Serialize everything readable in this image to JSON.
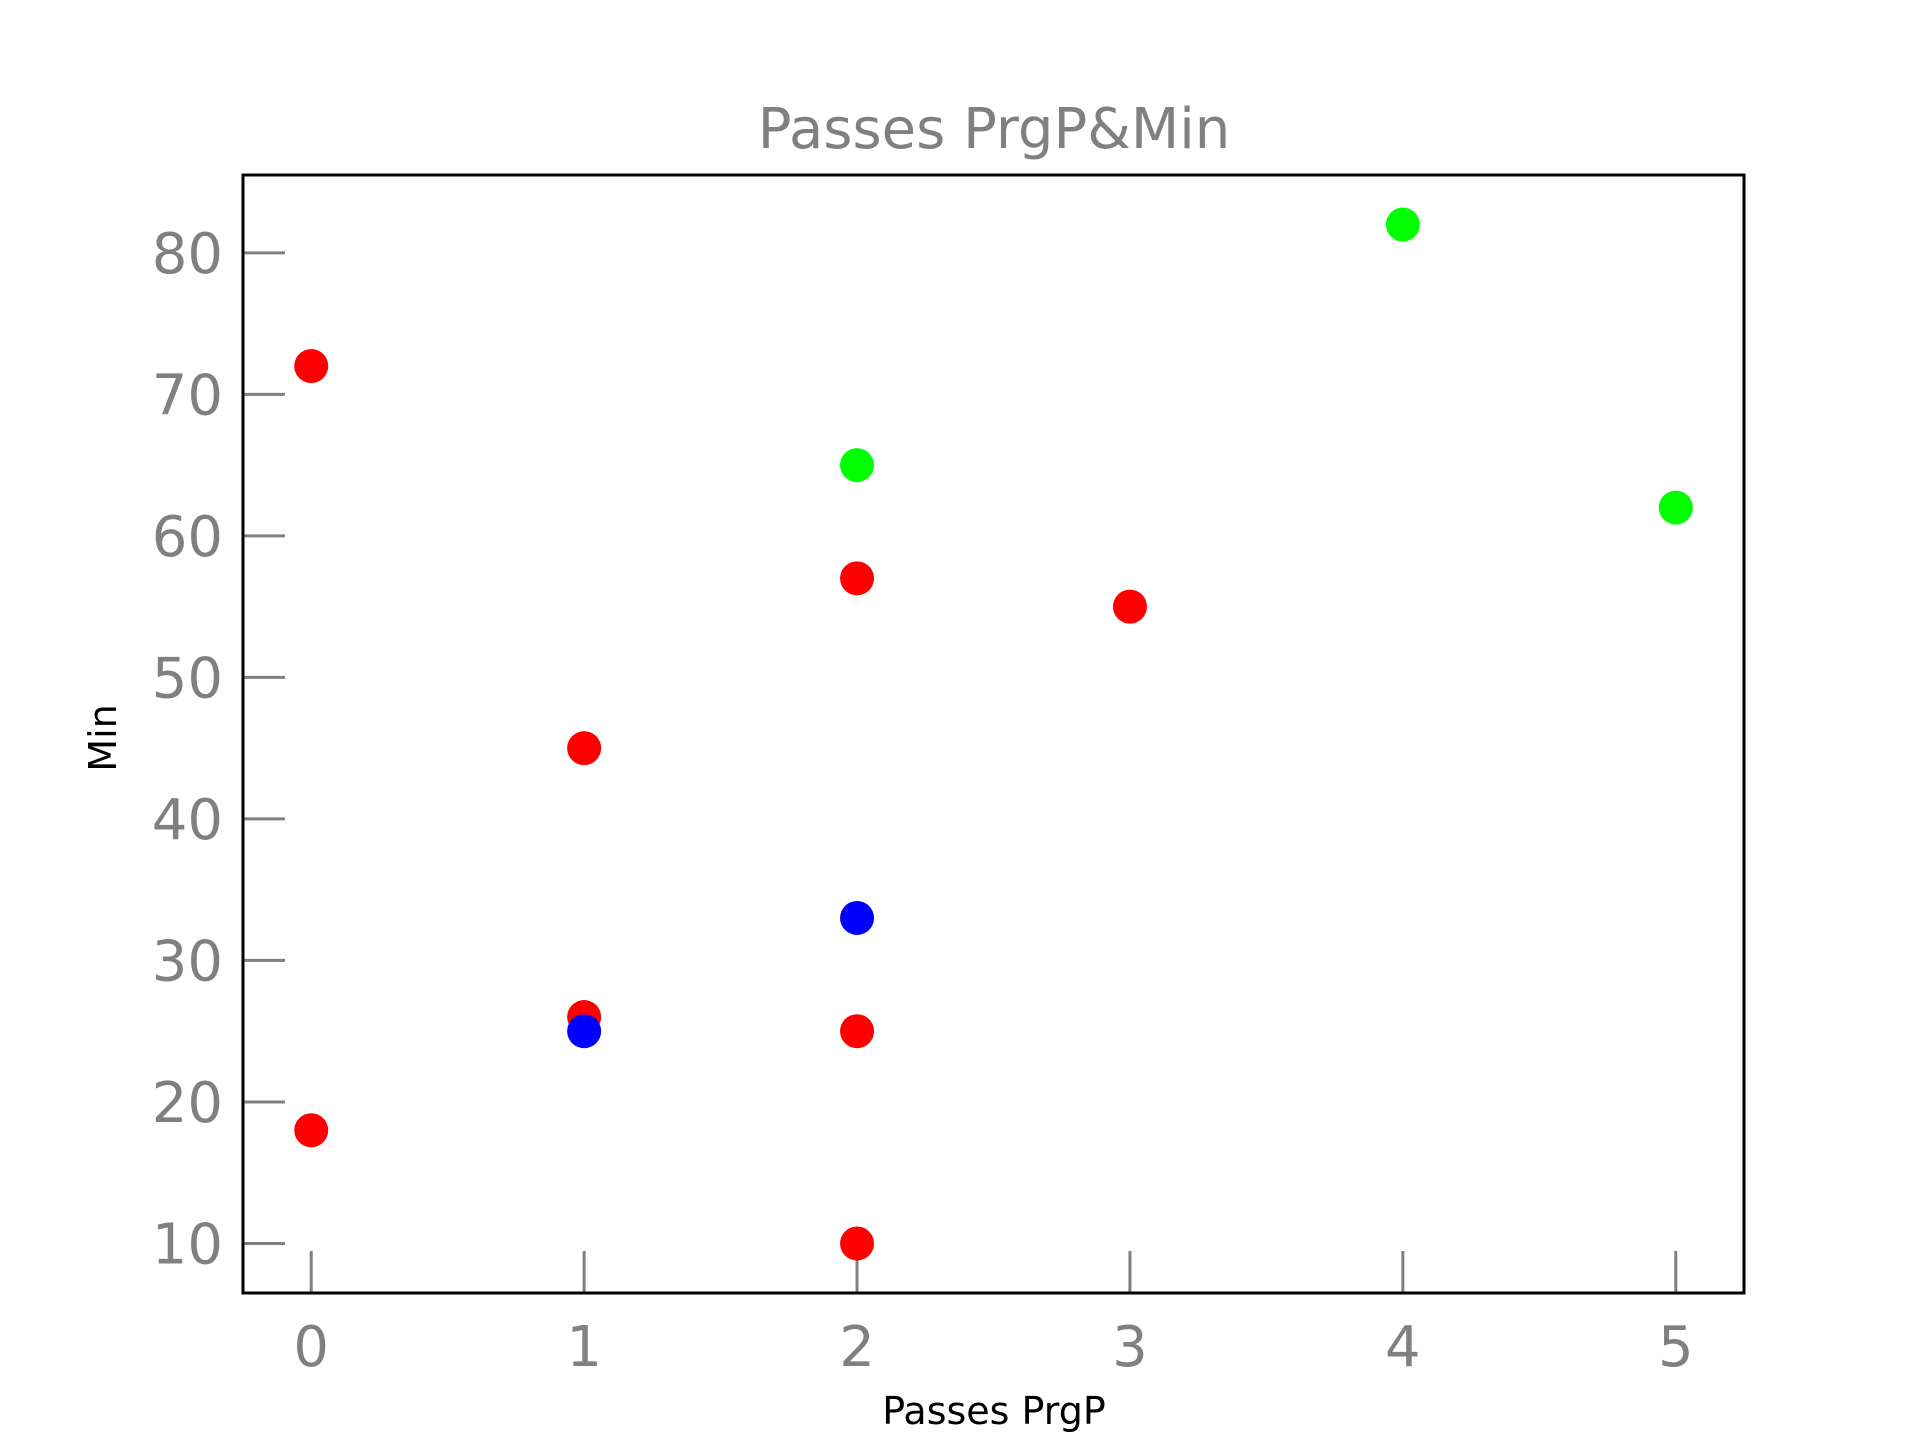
{
  "chart_data": {
    "type": "scatter",
    "title": "Passes PrgP&Min",
    "xlabel": "Passes PrgP",
    "ylabel": "Min",
    "xlim": [
      -0.25,
      5.25
    ],
    "ylim": [
      6.5,
      85.5
    ],
    "xticks": [
      0,
      1,
      2,
      3,
      4,
      5
    ],
    "yticks": [
      10,
      20,
      30,
      40,
      50,
      60,
      70,
      80
    ],
    "grid": false,
    "colors": {
      "text": "#808080",
      "axis_label": "#000000",
      "frame": "#000000",
      "tick": "#808080"
    },
    "points": [
      {
        "x": 0,
        "y": 72,
        "color": "#ff0000"
      },
      {
        "x": 0,
        "y": 18,
        "color": "#ff0000"
      },
      {
        "x": 1,
        "y": 45,
        "color": "#ff0000"
      },
      {
        "x": 1,
        "y": 26,
        "color": "#ff0000"
      },
      {
        "x": 1,
        "y": 25,
        "color": "#0000ff"
      },
      {
        "x": 2,
        "y": 65,
        "color": "#00ff00"
      },
      {
        "x": 2,
        "y": 57,
        "color": "#ff0000"
      },
      {
        "x": 2,
        "y": 33,
        "color": "#0000ff"
      },
      {
        "x": 2,
        "y": 25,
        "color": "#ff0000"
      },
      {
        "x": 2,
        "y": 10,
        "color": "#ff0000"
      },
      {
        "x": 3,
        "y": 55,
        "color": "#ff0000"
      },
      {
        "x": 4,
        "y": 82,
        "color": "#00ff00"
      },
      {
        "x": 5,
        "y": 62,
        "color": "#00ff00"
      }
    ]
  }
}
